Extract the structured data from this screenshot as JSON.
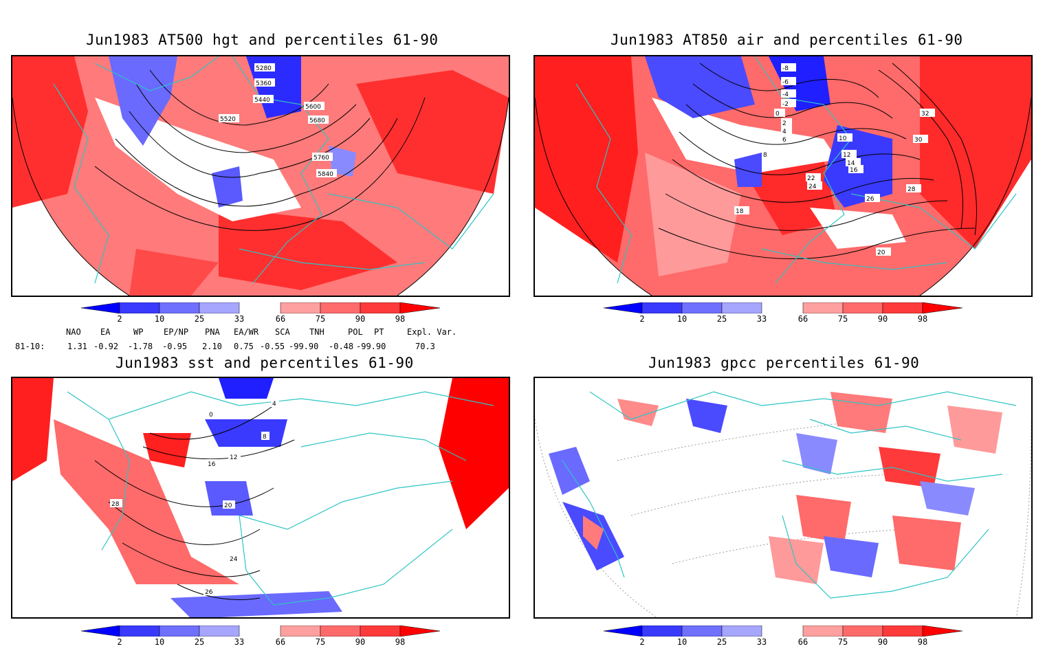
{
  "panels": [
    {
      "title": "Jun1983 AT500 hgt and percentiles 61-90",
      "contour_labels": [
        "5280",
        "5360",
        "5440",
        "5520",
        "5600",
        "5680",
        "5760",
        "5840"
      ]
    },
    {
      "title": "Jun1983 AT850 air and percentiles 61-90",
      "contour_labels": [
        "-8",
        "-6",
        "-4",
        "-2",
        "0",
        "2",
        "4",
        "6",
        "8",
        "10",
        "12",
        "14",
        "16",
        "18",
        "20",
        "22",
        "24",
        "26",
        "28",
        "30",
        "32"
      ]
    },
    {
      "title": "Jun1983 sst and percentiles 61-90",
      "contour_labels": [
        "0",
        "4",
        "8",
        "12",
        "16",
        "20",
        "24",
        "26",
        "28"
      ]
    },
    {
      "title": "Jun1983 gpcc percentiles 61-90",
      "contour_labels": []
    }
  ],
  "colorbar": {
    "labels": [
      "2",
      "10",
      "25",
      "33",
      "66",
      "75",
      "90",
      "98"
    ],
    "colors": [
      "#0000ff",
      "#3a3aff",
      "#7070ff",
      "#a6a6ff",
      "#ffffff",
      "#ffa0a0",
      "#ff6b6b",
      "#ff3a3a",
      "#ff0000"
    ]
  },
  "indices": {
    "headers": [
      "NAO",
      "EA",
      "WP",
      "EP/NP",
      "PNA",
      "EA/WR",
      "SCA",
      "TNH",
      "POL",
      "PT",
      "Expl. Var."
    ],
    "row_label": "81-10:",
    "values": [
      "1.31",
      "-0.92",
      "-1.78",
      "-0.95",
      "2.10",
      "0.75",
      "-0.55",
      "-99.90",
      "-0.48",
      "-99.90",
      "70.3"
    ]
  },
  "colors": {
    "coast": "#2ec4c4",
    "red": "#ff3333",
    "lightred": "#ff9a9a",
    "blue": "#3a3aff",
    "lightblue": "#9a9aff"
  }
}
